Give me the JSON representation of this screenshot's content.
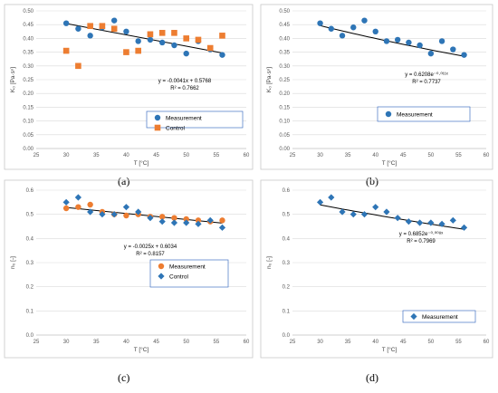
{
  "captions": [
    "(a)",
    "(b)",
    "(c)",
    "(d)"
  ],
  "colors": {
    "measurement_blue": "#2e75b6",
    "control_orange": "#ed7d31",
    "diamond_blue": "#2e75b6",
    "legend_border": "#4472c4"
  },
  "chart_data": [
    {
      "type": "scatter",
      "xlabel": "T [°C]",
      "ylabel": "K₀ [Pa·sⁿ]",
      "xlim": [
        25,
        60
      ],
      "ylim": [
        0,
        0.5
      ],
      "xticks": [
        25,
        30,
        35,
        40,
        45,
        50,
        55,
        60
      ],
      "yticks": [
        0,
        0.05,
        0.1,
        0.15,
        0.2,
        0.25,
        0.3,
        0.35,
        0.4,
        0.45,
        0.5
      ],
      "grid": true,
      "legend_placement": "bottom-right",
      "series": [
        {
          "name": "Measurement",
          "marker": "circle",
          "color": "#2e75b6",
          "x": [
            30,
            32,
            34,
            36,
            38,
            40,
            42,
            44,
            46,
            48,
            50,
            52,
            54,
            56
          ],
          "y": [
            0.455,
            0.435,
            0.41,
            0.44,
            0.465,
            0.425,
            0.39,
            0.395,
            0.385,
            0.375,
            0.345,
            0.39,
            0.36,
            0.34
          ]
        },
        {
          "name": "Control",
          "marker": "square",
          "color": "#ed7d31",
          "x": [
            30,
            32,
            34,
            36,
            38,
            40,
            42,
            44,
            46,
            48,
            50,
            52,
            54,
            56
          ],
          "y": [
            0.355,
            0.3,
            0.445,
            0.445,
            0.435,
            0.35,
            0.355,
            0.415,
            0.42,
            0.42,
            0.4,
            0.395,
            0.365,
            0.41
          ]
        }
      ],
      "trendline": {
        "type": "linear",
        "slope": -0.0041,
        "intercept": 0.5768,
        "equation": "y = -0.0041x + 0.5768",
        "r2": "R² = 0.7662"
      }
    },
    {
      "type": "scatter",
      "xlabel": "T [°C]",
      "ylabel": "K₀ [Pa·sⁿ]",
      "xlim": [
        25,
        60
      ],
      "ylim": [
        0,
        0.5
      ],
      "xticks": [
        25,
        30,
        35,
        40,
        45,
        50,
        55,
        60
      ],
      "yticks": [
        0,
        0.05,
        0.1,
        0.15,
        0.2,
        0.25,
        0.3,
        0.35,
        0.4,
        0.45,
        0.5
      ],
      "grid": true,
      "legend_placement": "bottom-right",
      "series": [
        {
          "name": "Measurement",
          "marker": "circle",
          "color": "#2e75b6",
          "x": [
            30,
            32,
            34,
            36,
            38,
            40,
            42,
            44,
            46,
            48,
            50,
            52,
            54,
            56
          ],
          "y": [
            0.455,
            0.435,
            0.41,
            0.44,
            0.465,
            0.425,
            0.39,
            0.395,
            0.385,
            0.375,
            0.345,
            0.39,
            0.36,
            0.34
          ]
        }
      ],
      "trendline": {
        "type": "exponential",
        "a": 0.6208,
        "b": -0.011,
        "equation": "y = 0.6208e⁻⁰·⁰¹¹ˣ",
        "r2": "R² = 0.7737"
      }
    },
    {
      "type": "scatter",
      "xlabel": "T [°C]",
      "ylabel": "n₀ [-]",
      "xlim": [
        25,
        60
      ],
      "ylim": [
        0,
        0.6
      ],
      "xticks": [
        25,
        30,
        35,
        40,
        45,
        50,
        55,
        60
      ],
      "yticks": [
        0,
        0.1,
        0.2,
        0.3,
        0.4,
        0.5,
        0.6
      ],
      "grid": true,
      "legend_placement": "bottom-right",
      "series": [
        {
          "name": "Measurement",
          "marker": "circle",
          "color": "#ed7d31",
          "x": [
            30,
            32,
            34,
            36,
            38,
            40,
            42,
            44,
            46,
            48,
            50,
            52,
            54,
            56
          ],
          "y": [
            0.525,
            0.53,
            0.54,
            0.51,
            0.5,
            0.495,
            0.5,
            0.49,
            0.49,
            0.485,
            0.48,
            0.475,
            0.47,
            0.475
          ]
        },
        {
          "name": "Control",
          "marker": "diamond",
          "color": "#2e75b6",
          "x": [
            30,
            32,
            34,
            36,
            38,
            40,
            42,
            44,
            46,
            48,
            50,
            52,
            54,
            56
          ],
          "y": [
            0.55,
            0.57,
            0.51,
            0.5,
            0.5,
            0.53,
            0.51,
            0.485,
            0.47,
            0.465,
            0.465,
            0.46,
            0.475,
            0.445
          ]
        }
      ],
      "trendline": {
        "type": "linear",
        "slope": -0.0025,
        "intercept": 0.6034,
        "equation": "y = -0.0025x + 0.6034",
        "r2": "R² = 0.8157"
      }
    },
    {
      "type": "scatter",
      "xlabel": "T [°C]",
      "ylabel": "n₀ [-]",
      "xlim": [
        25,
        60
      ],
      "ylim": [
        0,
        0.6
      ],
      "xticks": [
        25,
        30,
        35,
        40,
        45,
        50,
        55,
        60
      ],
      "yticks": [
        0,
        0.1,
        0.2,
        0.3,
        0.4,
        0.5,
        0.6
      ],
      "grid": true,
      "legend_placement": "bottom-right",
      "series": [
        {
          "name": "Measurement",
          "marker": "diamond",
          "color": "#2e75b6",
          "x": [
            30,
            32,
            34,
            36,
            38,
            40,
            42,
            44,
            46,
            48,
            50,
            52,
            54,
            56
          ],
          "y": [
            0.55,
            0.57,
            0.51,
            0.5,
            0.5,
            0.53,
            0.51,
            0.485,
            0.47,
            0.465,
            0.465,
            0.46,
            0.475,
            0.445
          ]
        }
      ],
      "trendline": {
        "type": "exponential",
        "a": 0.6852,
        "b": -0.008,
        "equation": "y = 0.6852e⁻⁰·⁰⁰⁸ˣ",
        "r2": "R² = 0.7969"
      }
    }
  ]
}
